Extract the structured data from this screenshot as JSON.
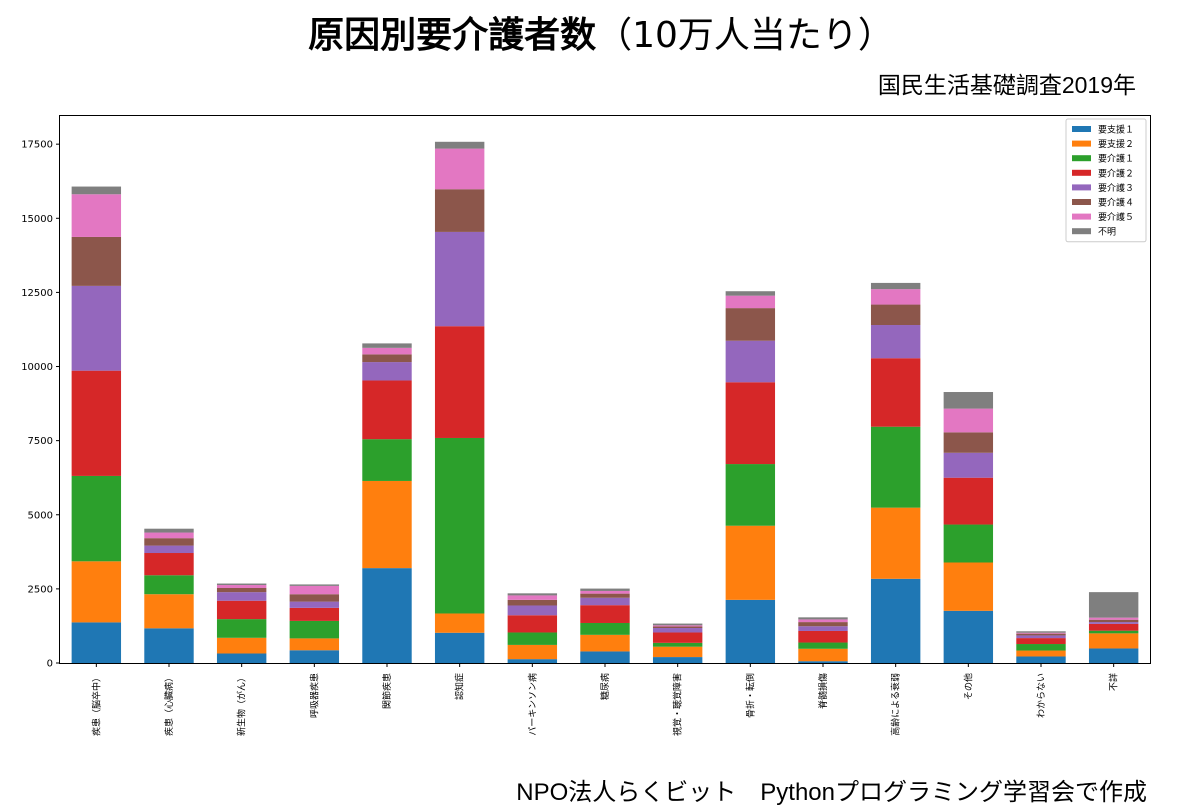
{
  "header": {
    "title_main": "原因別要介護者数",
    "title_sub": "（10万人当たり）",
    "source": "国民生活基礎調査2019年"
  },
  "footer": {
    "credit": "NPO法人らくビット　Pythonプログラミング学習会で作成"
  },
  "chart_data": {
    "type": "bar",
    "stacked": true,
    "categories": [
      "疾患（脳卒中）",
      "疾患（心臓病）",
      "新生物（がん）",
      "呼吸器疾患",
      "関節疾患",
      "認知症",
      "パーキンソン病",
      "糖尿病",
      "視覚・聴覚障害",
      "骨折・転倒",
      "脊髄損傷",
      "高齢による衰弱",
      "その他",
      "わからない",
      "不詳"
    ],
    "series": [
      {
        "name": "要支援１",
        "color": "#1f77b4",
        "values": [
          1370,
          1170,
          320,
          430,
          3200,
          1020,
          130,
          390,
          200,
          2130,
          60,
          2840,
          1760,
          220,
          490
        ]
      },
      {
        "name": "要支援２",
        "color": "#ff7f0e",
        "values": [
          2060,
          1150,
          530,
          400,
          2940,
          650,
          480,
          560,
          350,
          2500,
          420,
          2400,
          1630,
          200,
          510
        ]
      },
      {
        "name": "要介護１",
        "color": "#2ca02c",
        "values": [
          2880,
          640,
          630,
          590,
          1410,
          5920,
          420,
          400,
          130,
          2080,
          210,
          2730,
          1280,
          220,
          90
        ]
      },
      {
        "name": "要介護２",
        "color": "#d62728",
        "values": [
          3550,
          750,
          620,
          440,
          1980,
          3770,
          580,
          600,
          350,
          2760,
          390,
          2310,
          1580,
          200,
          230
        ]
      },
      {
        "name": "要介護３",
        "color": "#9467bd",
        "values": [
          2860,
          250,
          290,
          210,
          620,
          3180,
          330,
          250,
          150,
          1400,
          160,
          1120,
          840,
          90,
          60
        ]
      },
      {
        "name": "要介護４",
        "color": "#8c564b",
        "values": [
          1650,
          250,
          140,
          250,
          260,
          1440,
          190,
          140,
          50,
          1100,
          140,
          690,
          690,
          60,
          80
        ]
      },
      {
        "name": "要介護５",
        "color": "#e377c2",
        "values": [
          1440,
          190,
          100,
          280,
          220,
          1370,
          150,
          90,
          40,
          420,
          90,
          520,
          800,
          30,
          70
        ]
      },
      {
        "name": "不明",
        "color": "#7f7f7f",
        "values": [
          260,
          130,
          50,
          50,
          150,
          230,
          70,
          80,
          60,
          150,
          70,
          210,
          560,
          50,
          860
        ]
      }
    ],
    "yticks": [
      0,
      2500,
      5000,
      7500,
      10000,
      12500,
      15000,
      17500
    ],
    "ylim": [
      0,
      18450
    ],
    "xlabel": "",
    "ylabel": "",
    "legend": "top-right",
    "grid": false
  }
}
